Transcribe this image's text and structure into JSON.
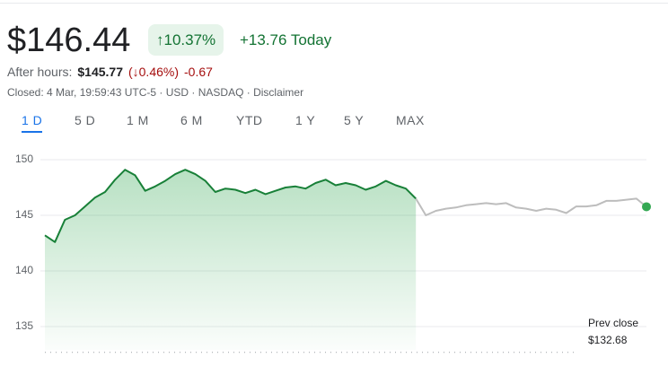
{
  "header": {
    "price": "$146.44",
    "change_pct": "↑10.37%",
    "change_today": "+13.76 Today",
    "after_hours_label": "After hours:",
    "after_hours_price": "$145.77",
    "after_hours_pct": "(↓0.46%)",
    "after_hours_change": "-0.67",
    "status": "Closed: 4 Mar, 19:59:43 UTC-5 · USD · NASDAQ · ",
    "disclaimer": "Disclaimer",
    "tabs": [
      "1 D",
      "5 D",
      "1 M",
      "6 M",
      "YTD",
      "1 Y",
      "5 Y",
      "MAX"
    ]
  },
  "chart_data": {
    "type": "line",
    "ylim": [
      132,
      151
    ],
    "yticks": [
      135,
      140,
      145,
      150
    ],
    "grid": true,
    "prev_close": {
      "label": "Prev close",
      "value": 132.68,
      "value_label": "$132.68"
    },
    "series": [
      {
        "color": "#188038",
        "area": true,
        "values": [
          143.2,
          142.6,
          144.6,
          145,
          145.8,
          146.6,
          147.1,
          148.2,
          149.1,
          148.6,
          147.2,
          147.6,
          148.1,
          148.7,
          149.1,
          148.7,
          148.1,
          147.1,
          147.4,
          147.3,
          147.0,
          147.3,
          146.9,
          147.2,
          147.5,
          147.6,
          147.4,
          147.9,
          148.2,
          147.7,
          147.9,
          147.7,
          147.3,
          147.6,
          148.1,
          147.7,
          147.4,
          146.5,
          null,
          null,
          null,
          null,
          null,
          null,
          null,
          null,
          null,
          null,
          null,
          null,
          null,
          null,
          null,
          null,
          null,
          null,
          null,
          null,
          null,
          null,
          null
        ]
      },
      {
        "color": "#bdbdbd",
        "area": false,
        "values": [
          null,
          null,
          null,
          null,
          null,
          null,
          null,
          null,
          null,
          null,
          null,
          null,
          null,
          null,
          null,
          null,
          null,
          null,
          null,
          null,
          null,
          null,
          null,
          null,
          null,
          null,
          null,
          null,
          null,
          null,
          null,
          null,
          null,
          null,
          null,
          null,
          null,
          146.5,
          145,
          145.4,
          145.6,
          145.7,
          145.9,
          146.0,
          146.1,
          146.0,
          146.1,
          145.7,
          145.6,
          145.4,
          145.6,
          145.5,
          145.2,
          145.8,
          145.8,
          145.9,
          146.3,
          146.3,
          146.4,
          146.5,
          145.77
        ]
      }
    ]
  }
}
